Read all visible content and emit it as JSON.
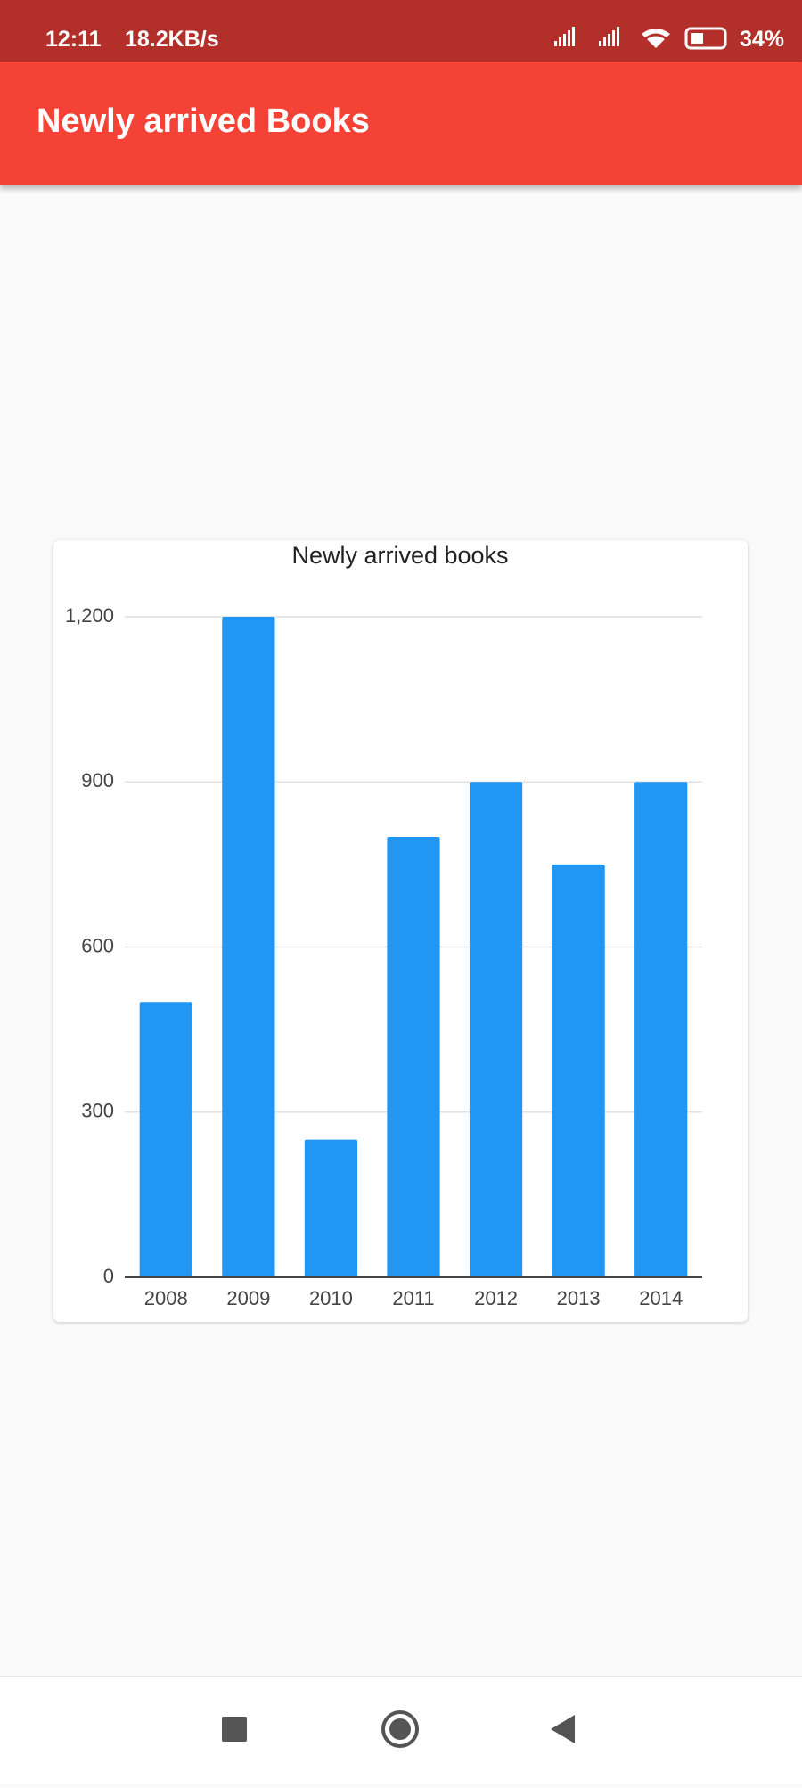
{
  "status_bar": {
    "time": "12:11",
    "speed": "18.2KB/s",
    "battery": "34%"
  },
  "app_bar": {
    "title": "Newly arrived Books"
  },
  "chart_data": {
    "type": "bar",
    "title": "Newly arrived books",
    "categories": [
      "2008",
      "2009",
      "2010",
      "2011",
      "2012",
      "2013",
      "2014"
    ],
    "values": [
      500,
      1200,
      250,
      800,
      900,
      750,
      900
    ],
    "color": "#2196f3",
    "ylim": [
      0,
      1200
    ],
    "yticks": [
      0,
      300,
      600,
      900,
      {
        "value": 1200,
        "label": "1,200"
      }
    ],
    "grid": true
  }
}
